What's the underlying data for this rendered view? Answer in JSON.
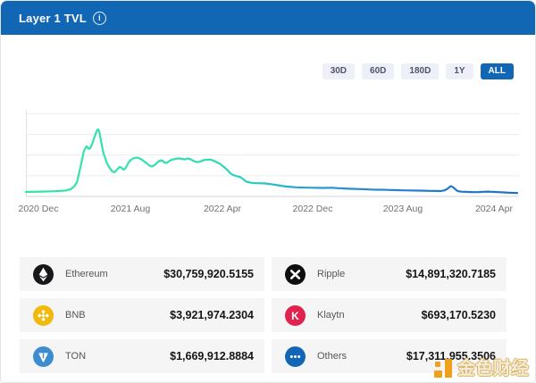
{
  "colors": {
    "accent": "#1267b4",
    "line_start": "#36e5ac",
    "line_end": "#1d6fc6",
    "cell_bg": "#f5f5f6"
  },
  "header": {
    "title": "Layer 1 TVL",
    "info_glyph": "i"
  },
  "controls": {
    "ranges": [
      {
        "label": "30D",
        "active": false
      },
      {
        "label": "60D",
        "active": false
      },
      {
        "label": "180D",
        "active": false
      },
      {
        "label": "1Y",
        "active": false
      },
      {
        "label": "ALL",
        "active": true
      }
    ]
  },
  "chart_data": {
    "type": "line",
    "title": "Layer 1 TVL",
    "x_ticks": [
      "2020 Dec",
      "2021 Aug",
      "2022 Apr",
      "2022 Dec",
      "2023 Aug",
      "2024 Apr"
    ],
    "x_range": {
      "start": "2020 Nov",
      "end": "2024 May"
    },
    "y_axis": "unlabeled in source; values are relative, peak = 100",
    "grid": "horizontal",
    "legend": "none",
    "series": [
      {
        "name": "Layer 1 TVL",
        "points": [
          [
            0,
            6.7
          ],
          [
            0.031,
            7.2
          ],
          [
            0.058,
            7.7
          ],
          [
            0.08,
            8.7
          ],
          [
            0.091,
            10.7
          ],
          [
            0.098,
            14.7
          ],
          [
            0.104,
            21.3
          ],
          [
            0.107,
            30.7
          ],
          [
            0.111,
            44
          ],
          [
            0.115,
            57.3
          ],
          [
            0.118,
            68
          ],
          [
            0.122,
            73.3
          ],
          [
            0.124,
            74.7
          ],
          [
            0.127,
            71.3
          ],
          [
            0.131,
            72
          ],
          [
            0.135,
            78.7
          ],
          [
            0.138,
            85.3
          ],
          [
            0.142,
            93.3
          ],
          [
            0.145,
            99.3
          ],
          [
            0.147,
            100
          ],
          [
            0.149,
            97.3
          ],
          [
            0.151,
            90.7
          ],
          [
            0.153,
            82.7
          ],
          [
            0.155,
            74.7
          ],
          [
            0.158,
            64
          ],
          [
            0.162,
            56
          ],
          [
            0.165,
            49.3
          ],
          [
            0.169,
            44
          ],
          [
            0.173,
            40
          ],
          [
            0.176,
            37.3
          ],
          [
            0.18,
            36
          ],
          [
            0.184,
            38.7
          ],
          [
            0.187,
            41.3
          ],
          [
            0.191,
            44
          ],
          [
            0.195,
            42.7
          ],
          [
            0.198,
            40
          ],
          [
            0.202,
            41.3
          ],
          [
            0.205,
            45.3
          ],
          [
            0.209,
            50.7
          ],
          [
            0.213,
            54
          ],
          [
            0.218,
            56.7
          ],
          [
            0.224,
            58
          ],
          [
            0.229,
            57.3
          ],
          [
            0.235,
            55.3
          ],
          [
            0.24,
            52.7
          ],
          [
            0.245,
            50
          ],
          [
            0.249,
            47.3
          ],
          [
            0.253,
            45.3
          ],
          [
            0.256,
            44.7
          ],
          [
            0.26,
            46
          ],
          [
            0.264,
            48
          ],
          [
            0.267,
            50.7
          ],
          [
            0.271,
            52.7
          ],
          [
            0.275,
            54
          ],
          [
            0.278,
            53.3
          ],
          [
            0.282,
            50.7
          ],
          [
            0.285,
            50
          ],
          [
            0.289,
            51.3
          ],
          [
            0.293,
            53.3
          ],
          [
            0.296,
            54.7
          ],
          [
            0.302,
            55.6
          ],
          [
            0.307,
            56.5
          ],
          [
            0.313,
            56.7
          ],
          [
            0.318,
            56
          ],
          [
            0.324,
            55.3
          ],
          [
            0.329,
            56.7
          ],
          [
            0.336,
            55.3
          ],
          [
            0.34,
            53.3
          ],
          [
            0.344,
            52
          ],
          [
            0.349,
            51.3
          ],
          [
            0.355,
            52
          ],
          [
            0.358,
            53.3
          ],
          [
            0.364,
            54.4
          ],
          [
            0.369,
            54.7
          ],
          [
            0.375,
            55.1
          ],
          [
            0.38,
            54
          ],
          [
            0.384,
            52.7
          ],
          [
            0.391,
            50
          ],
          [
            0.395,
            48.7
          ],
          [
            0.398,
            46.7
          ],
          [
            0.402,
            44.7
          ],
          [
            0.405,
            42.7
          ],
          [
            0.409,
            40
          ],
          [
            0.413,
            37.3
          ],
          [
            0.416,
            34.7
          ],
          [
            0.42,
            32.7
          ],
          [
            0.424,
            31.3
          ],
          [
            0.429,
            30.3
          ],
          [
            0.435,
            29.3
          ],
          [
            0.438,
            28
          ],
          [
            0.442,
            26
          ],
          [
            0.445,
            24
          ],
          [
            0.449,
            22
          ],
          [
            0.453,
            21.3
          ],
          [
            0.458,
            20.4
          ],
          [
            0.464,
            20
          ],
          [
            0.471,
            19.7
          ],
          [
            0.478,
            19.6
          ],
          [
            0.485,
            19.5
          ],
          [
            0.495,
            18.7
          ],
          [
            0.504,
            17.7
          ],
          [
            0.513,
            16.7
          ],
          [
            0.522,
            15.6
          ],
          [
            0.531,
            14.7
          ],
          [
            0.54,
            14.1
          ],
          [
            0.549,
            13.6
          ],
          [
            0.56,
            13.3
          ],
          [
            0.571,
            13.1
          ],
          [
            0.582,
            12.9
          ],
          [
            0.593,
            12.8
          ],
          [
            0.604,
            12.7
          ],
          [
            0.615,
            12.8
          ],
          [
            0.625,
            12.8
          ],
          [
            0.636,
            12.3
          ],
          [
            0.647,
            11.9
          ],
          [
            0.658,
            11.5
          ],
          [
            0.669,
            11.2
          ],
          [
            0.68,
            10.9
          ],
          [
            0.691,
            10.7
          ],
          [
            0.702,
            10.3
          ],
          [
            0.713,
            10
          ],
          [
            0.724,
            10
          ],
          [
            0.735,
            9.7
          ],
          [
            0.745,
            9.5
          ],
          [
            0.756,
            9.3
          ],
          [
            0.767,
            9.1
          ],
          [
            0.778,
            8.9
          ],
          [
            0.789,
            8.8
          ],
          [
            0.8,
            8.7
          ],
          [
            0.811,
            8.5
          ],
          [
            0.822,
            8.3
          ],
          [
            0.833,
            8.1
          ],
          [
            0.842,
            8
          ],
          [
            0.847,
            8.3
          ],
          [
            0.853,
            9.3
          ],
          [
            0.858,
            11.3
          ],
          [
            0.862,
            13.6
          ],
          [
            0.864,
            15.1
          ],
          [
            0.865,
            15.3
          ],
          [
            0.867,
            14.8
          ],
          [
            0.871,
            12.7
          ],
          [
            0.875,
            10
          ],
          [
            0.878,
            8.3
          ],
          [
            0.882,
            7.5
          ],
          [
            0.887,
            7.1
          ],
          [
            0.895,
            6.8
          ],
          [
            0.904,
            6.5
          ],
          [
            0.913,
            6.4
          ],
          [
            0.922,
            6.5
          ],
          [
            0.931,
            6.9
          ],
          [
            0.94,
            7.2
          ],
          [
            0.947,
            6.9
          ],
          [
            0.955,
            6.7
          ],
          [
            0.964,
            6.3
          ],
          [
            0.973,
            6
          ],
          [
            0.982,
            5.6
          ],
          [
            0.991,
            5.3
          ],
          [
            1,
            5.1
          ]
        ]
      }
    ]
  },
  "table": {
    "rows": [
      {
        "name": "Ethereum",
        "value": "$30,759,920.5155",
        "icon": "ethereum-icon",
        "bg": "#17181c"
      },
      {
        "name": "Ripple",
        "value": "$14,891,320.7185",
        "icon": "ripple-icon",
        "bg": "#0f0f10"
      },
      {
        "name": "BNB",
        "value": "$3,921,974.2304",
        "icon": "bnb-icon",
        "bg": "#f0b90b"
      },
      {
        "name": "Klaytn",
        "value": "$693,170.5230",
        "icon": "klaytn-icon",
        "bg": "#e0234e"
      },
      {
        "name": "TON",
        "value": "$1,669,912.8884",
        "icon": "ton-icon",
        "bg": "#3d8cd0"
      },
      {
        "name": "Others",
        "value": "$17,311,955.3506",
        "icon": "others-icon",
        "bg": "#1166b8"
      }
    ]
  },
  "watermark": {
    "text": "金色财经"
  }
}
